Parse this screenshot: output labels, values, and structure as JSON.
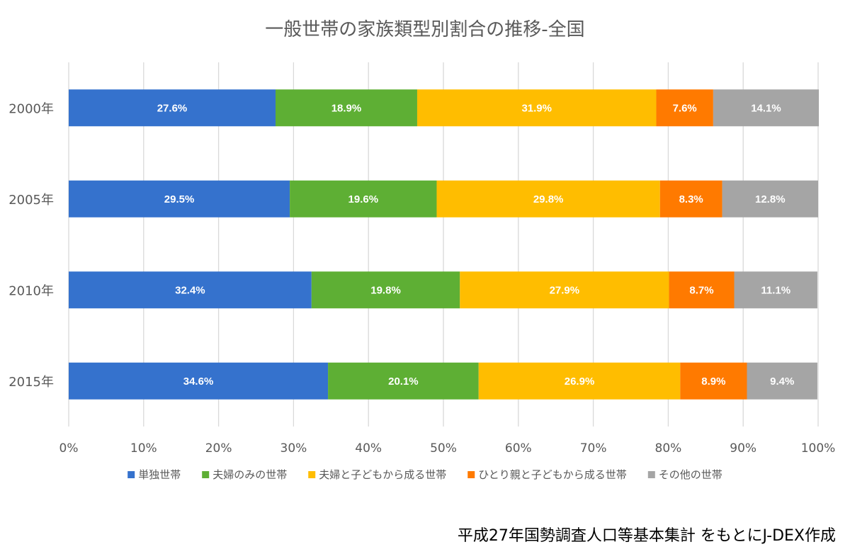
{
  "chart_data": {
    "type": "bar",
    "orientation": "horizontal",
    "stacked": true,
    "title": "一般世帯の家族類型別割合の推移-全国",
    "categories": [
      "2000年",
      "2005年",
      "2010年",
      "2015年"
    ],
    "series": [
      {
        "name": "単独世帯",
        "color": "#3572cd",
        "values": [
          27.6,
          29.5,
          32.4,
          34.6
        ],
        "labels": [
          "27.6%",
          "29.5%",
          "32.4%",
          "34.6%"
        ]
      },
      {
        "name": "夫婦のみの世帯",
        "color": "#5eaf34",
        "values": [
          18.9,
          19.6,
          19.8,
          20.1
        ],
        "labels": [
          "18.9%",
          "19.6%",
          "19.8%",
          "20.1%"
        ]
      },
      {
        "name": "夫婦と子どもから成る世帯",
        "color": "#ffbd00",
        "values": [
          31.9,
          29.8,
          27.9,
          26.9
        ],
        "labels": [
          "31.9%",
          "29.8%",
          "27.9%",
          "26.9%"
        ]
      },
      {
        "name": "ひとり親と子どもから成る世帯",
        "color": "#ff7a00",
        "values": [
          7.6,
          8.3,
          8.7,
          8.9
        ],
        "labels": [
          "7.6%",
          "8.3%",
          "8.7%",
          "8.9%"
        ]
      },
      {
        "name": "その他の世帯",
        "color": "#a5a5a5",
        "values": [
          14.1,
          12.8,
          11.1,
          9.4
        ],
        "labels": [
          "14.1%",
          "12.8%",
          "11.1%",
          "9.4%"
        ]
      }
    ],
    "xlim": [
      0,
      100
    ],
    "x_ticks": [
      "0%",
      "10%",
      "20%",
      "30%",
      "40%",
      "50%",
      "60%",
      "70%",
      "80%",
      "90%",
      "100%"
    ],
    "grid": true,
    "legend": "bottom",
    "source": "平成27年国勢調査人口等基本集計 をもとにJ-DEX作成"
  }
}
